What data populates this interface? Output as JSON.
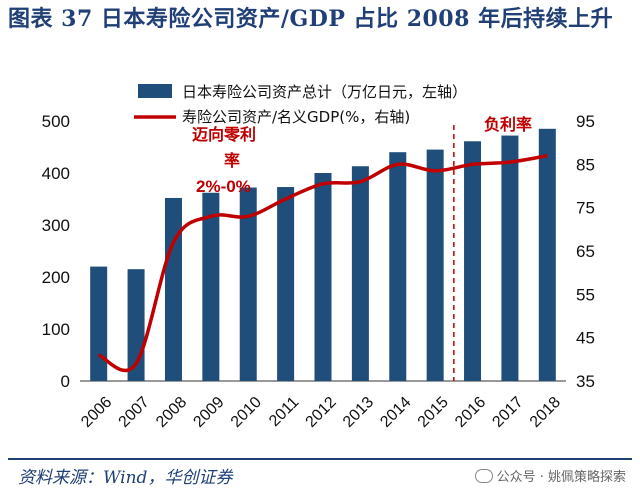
{
  "title": "图表 37  日本寿险公司资产/GDP 占比 2008 年后持续上升",
  "source": "资料来源：Wind，华创证券",
  "watermark": "公众号 · 姚佩策略探索",
  "colors": {
    "bar": "#1f4e7a",
    "line": "#c00000",
    "annotation": "#c00000",
    "title": "#1f3f76"
  },
  "annotations": {
    "zero_rate_line1": "迈向零利",
    "zero_rate_line2": "率",
    "zero_rate_range": "2%-0%",
    "negative_rate": "负利率"
  },
  "chart_data": {
    "type": "bar+line",
    "categories": [
      "2006",
      "2007",
      "2008",
      "2009",
      "2010",
      "2011",
      "2012",
      "2013",
      "2014",
      "2015",
      "2016",
      "2017",
      "2018"
    ],
    "series": [
      {
        "name": "日本寿险公司资产总计（万亿日元，左轴）",
        "type": "bar",
        "axis": "left",
        "values": [
          220,
          215,
          352,
          362,
          372,
          373,
          400,
          413,
          440,
          445,
          461,
          472,
          485
        ]
      },
      {
        "name": "寿险公司资产/名义GDP(%，右轴)",
        "type": "line",
        "axis": "right",
        "values": [
          41,
          39,
          67,
          73,
          73,
          77,
          80.5,
          81,
          85,
          83.5,
          85,
          85.5,
          87
        ]
      }
    ],
    "y_left": {
      "min": 0,
      "max": 500,
      "ticks": [
        0,
        100,
        200,
        300,
        400,
        500
      ]
    },
    "y_right": {
      "min": 35,
      "max": 95,
      "ticks": [
        35,
        45,
        55,
        65,
        75,
        85,
        95
      ]
    },
    "marker_line_between": [
      "2015",
      "2016"
    ],
    "legend_position": "top-left"
  }
}
